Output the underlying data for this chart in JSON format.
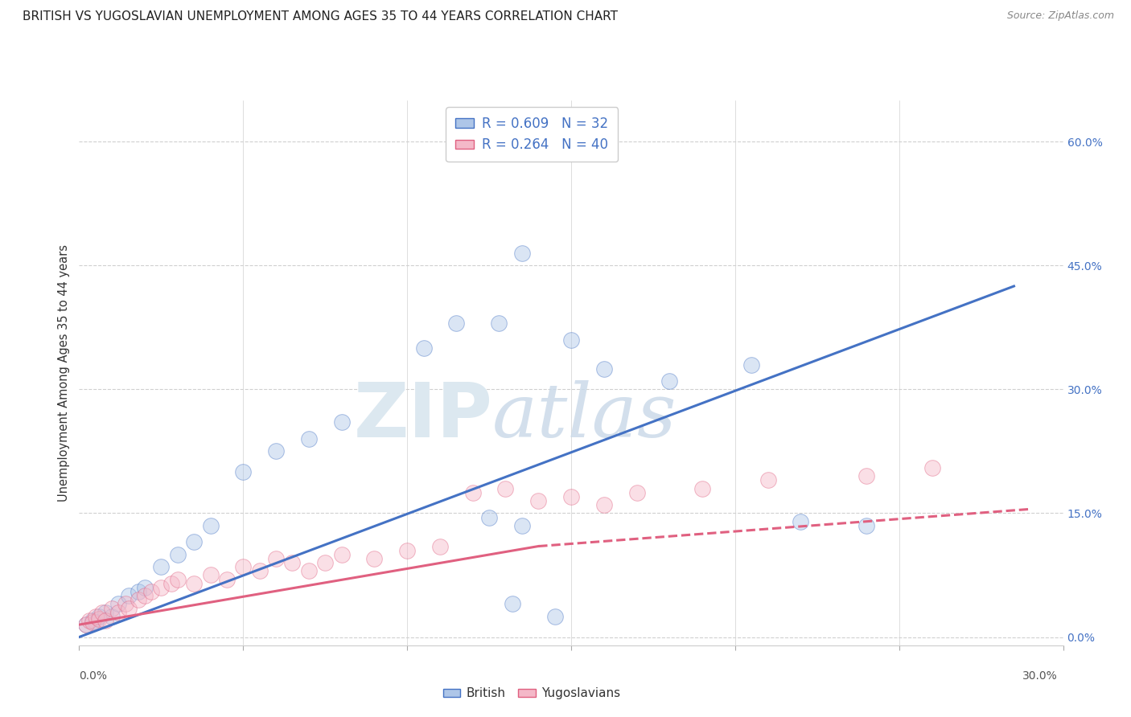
{
  "title": "BRITISH VS YUGOSLAVIAN UNEMPLOYMENT AMONG AGES 35 TO 44 YEARS CORRELATION CHART",
  "source": "Source: ZipAtlas.com",
  "ylabel": "Unemployment Among Ages 35 to 44 years",
  "right_ytick_vals": [
    0.0,
    15.0,
    30.0,
    45.0,
    60.0
  ],
  "xlim": [
    0.0,
    30.0
  ],
  "ylim": [
    -1.0,
    65.0
  ],
  "legend_r1": "R = 0.609   N = 32",
  "legend_r2": "R = 0.264   N = 40",
  "british_color": "#aec6e8",
  "yugoslavian_color": "#f4b8c8",
  "british_line_color": "#4472c4",
  "yugoslavian_line_color": "#e06080",
  "british_scatter": [
    [
      0.2,
      1.5
    ],
    [
      0.4,
      2.0
    ],
    [
      0.5,
      1.8
    ],
    [
      0.6,
      2.5
    ],
    [
      0.8,
      3.0
    ],
    [
      1.0,
      2.5
    ],
    [
      1.2,
      4.0
    ],
    [
      1.5,
      5.0
    ],
    [
      1.8,
      5.5
    ],
    [
      2.0,
      6.0
    ],
    [
      2.5,
      8.5
    ],
    [
      3.0,
      10.0
    ],
    [
      3.5,
      11.5
    ],
    [
      4.0,
      13.5
    ],
    [
      5.0,
      20.0
    ],
    [
      6.0,
      22.5
    ],
    [
      7.0,
      24.0
    ],
    [
      8.0,
      26.0
    ],
    [
      10.5,
      35.0
    ],
    [
      11.5,
      38.0
    ],
    [
      13.5,
      46.5
    ],
    [
      15.0,
      36.0
    ],
    [
      16.0,
      32.5
    ],
    [
      18.0,
      31.0
    ],
    [
      20.5,
      33.0
    ],
    [
      22.0,
      14.0
    ],
    [
      24.0,
      13.5
    ],
    [
      12.5,
      14.5
    ],
    [
      13.5,
      13.5
    ],
    [
      14.5,
      2.5
    ],
    [
      13.2,
      4.0
    ],
    [
      12.8,
      38.0
    ]
  ],
  "yugoslavian_scatter": [
    [
      0.2,
      1.5
    ],
    [
      0.3,
      2.0
    ],
    [
      0.4,
      1.8
    ],
    [
      0.5,
      2.5
    ],
    [
      0.6,
      2.2
    ],
    [
      0.7,
      3.0
    ],
    [
      0.8,
      2.0
    ],
    [
      1.0,
      3.5
    ],
    [
      1.2,
      3.0
    ],
    [
      1.4,
      4.0
    ],
    [
      1.5,
      3.5
    ],
    [
      1.8,
      4.5
    ],
    [
      2.0,
      5.0
    ],
    [
      2.2,
      5.5
    ],
    [
      2.5,
      6.0
    ],
    [
      2.8,
      6.5
    ],
    [
      3.0,
      7.0
    ],
    [
      3.5,
      6.5
    ],
    [
      4.0,
      7.5
    ],
    [
      4.5,
      7.0
    ],
    [
      5.0,
      8.5
    ],
    [
      5.5,
      8.0
    ],
    [
      6.0,
      9.5
    ],
    [
      6.5,
      9.0
    ],
    [
      7.0,
      8.0
    ],
    [
      7.5,
      9.0
    ],
    [
      8.0,
      10.0
    ],
    [
      9.0,
      9.5
    ],
    [
      10.0,
      10.5
    ],
    [
      11.0,
      11.0
    ],
    [
      12.0,
      17.5
    ],
    [
      13.0,
      18.0
    ],
    [
      14.0,
      16.5
    ],
    [
      15.0,
      17.0
    ],
    [
      16.0,
      16.0
    ],
    [
      17.0,
      17.5
    ],
    [
      19.0,
      18.0
    ],
    [
      21.0,
      19.0
    ],
    [
      24.0,
      19.5
    ],
    [
      26.0,
      20.5
    ]
  ],
  "british_line": [
    [
      0.0,
      0.0
    ],
    [
      28.5,
      42.5
    ]
  ],
  "yugoslavian_line_solid": [
    [
      0.0,
      1.5
    ],
    [
      14.0,
      11.0
    ]
  ],
  "yugoslavian_line_dashed": [
    [
      14.0,
      11.0
    ],
    [
      29.0,
      15.5
    ]
  ],
  "watermark_zip": "ZIP",
  "watermark_atlas": "atlas",
  "watermark_color": "#dce8f0",
  "grid_color": "#d0d0d0",
  "background_color": "#ffffff",
  "marker_size": 200,
  "marker_alpha": 0.45,
  "title_fontsize": 11,
  "source_fontsize": 9
}
